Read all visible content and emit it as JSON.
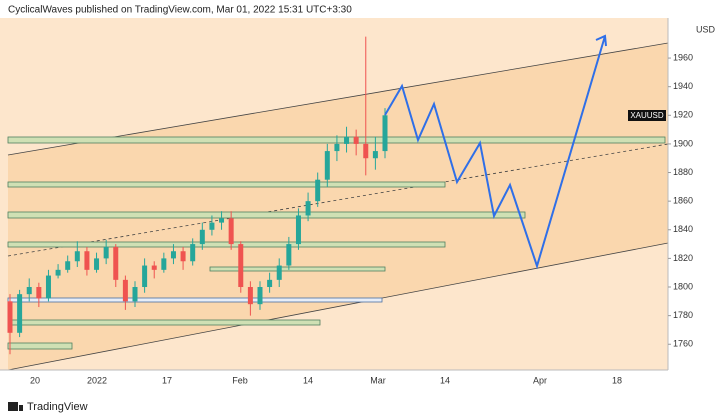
{
  "header": "CyclicalWaves published on TradingView.com, Mar 01, 2022 15:31 UTC+3:30",
  "footer": "TradingView",
  "chart_data": {
    "type": "candlestick",
    "currency": "USD",
    "series": [
      {
        "name": "XAUUSD",
        "open": [
          1790,
          1768,
          1795,
          1800,
          1792,
          1808,
          1812,
          1818,
          1825,
          1812,
          1820,
          1828,
          1805,
          1790,
          1800,
          1815,
          1812,
          1820,
          1825,
          1818,
          1830,
          1840,
          1845,
          1848,
          1830,
          1800,
          1788,
          1800,
          1805,
          1815,
          1830,
          1850,
          1860,
          1875,
          1895,
          1900,
          1905,
          1900,
          1890,
          1895
        ],
        "high": [
          1795,
          1798,
          1806,
          1803,
          1812,
          1816,
          1822,
          1832,
          1828,
          1824,
          1833,
          1830,
          1808,
          1804,
          1820,
          1818,
          1824,
          1830,
          1828,
          1834,
          1845,
          1850,
          1853,
          1853,
          1832,
          1804,
          1804,
          1810,
          1820,
          1835,
          1855,
          1866,
          1880,
          1900,
          1906,
          1912,
          1910,
          1975,
          1905,
          1925
        ],
        "low": [
          1753,
          1765,
          1790,
          1786,
          1790,
          1806,
          1810,
          1814,
          1808,
          1810,
          1816,
          1800,
          1784,
          1786,
          1796,
          1806,
          1810,
          1816,
          1812,
          1815,
          1826,
          1836,
          1840,
          1826,
          1796,
          1780,
          1784,
          1796,
          1800,
          1812,
          1826,
          1846,
          1856,
          1870,
          1888,
          1894,
          1892,
          1878,
          1882,
          1890
        ],
        "close": [
          1768,
          1795,
          1800,
          1792,
          1808,
          1812,
          1818,
          1825,
          1812,
          1820,
          1828,
          1805,
          1790,
          1800,
          1815,
          1812,
          1820,
          1825,
          1818,
          1830,
          1840,
          1845,
          1848,
          1830,
          1800,
          1788,
          1800,
          1805,
          1815,
          1830,
          1850,
          1860,
          1875,
          1895,
          1900,
          1905,
          1900,
          1890,
          1895,
          1920
        ]
      }
    ],
    "up_color": "#26a69a",
    "down_color": "#ef5350",
    "ylim": [
      1742,
      1988
    ],
    "yticks": [
      1760,
      1780,
      1800,
      1820,
      1840,
      1860,
      1880,
      1900,
      1920,
      1940,
      1960
    ],
    "x_labels": [
      "20",
      "2022",
      "17",
      "Feb",
      "14",
      "Mar",
      "14",
      "Apr",
      "18"
    ]
  }
}
